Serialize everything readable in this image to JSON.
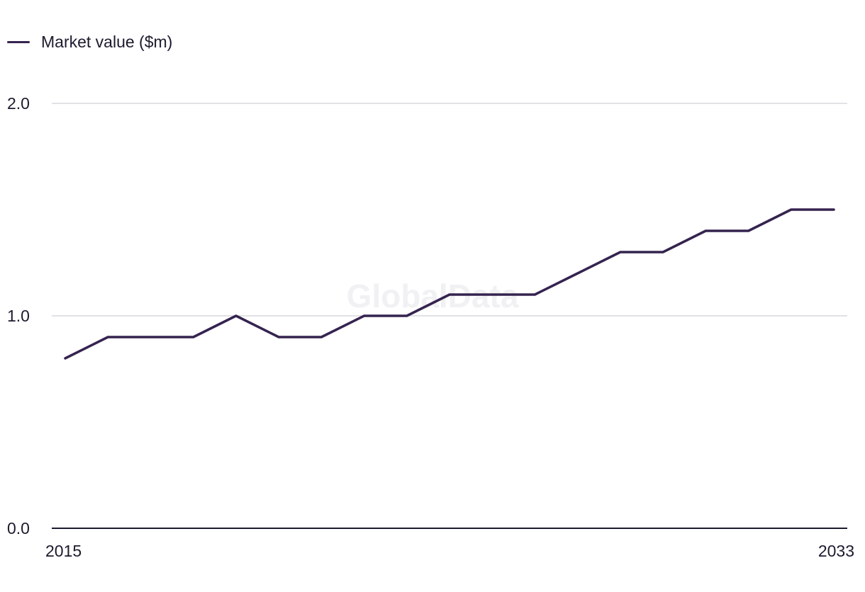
{
  "legend": {
    "label": "Market value ($m)"
  },
  "watermark": "GlobalData",
  "colors": {
    "series": "#35234f",
    "grid": "#d9d8de",
    "axis": "#1b1b2f"
  },
  "chart_data": {
    "type": "line",
    "title": "",
    "xlabel": "",
    "ylabel": "",
    "x": [
      2015,
      2016,
      2017,
      2018,
      2019,
      2020,
      2021,
      2022,
      2023,
      2024,
      2025,
      2026,
      2027,
      2028,
      2029,
      2030,
      2031,
      2032,
      2033
    ],
    "series": [
      {
        "name": "Market value ($m)",
        "values": [
          0.8,
          0.9,
          0.9,
          0.9,
          1.0,
          0.9,
          0.9,
          1.0,
          1.0,
          1.1,
          1.1,
          1.1,
          1.2,
          1.3,
          1.3,
          1.4,
          1.4,
          1.5,
          1.5
        ]
      }
    ],
    "ylim": [
      0,
      2
    ],
    "y_ticks": [
      "0.0",
      "1.0",
      "2.0"
    ],
    "x_tick_labels": [
      "2015",
      "2033"
    ],
    "grid": true,
    "legend_position": "top-left"
  }
}
